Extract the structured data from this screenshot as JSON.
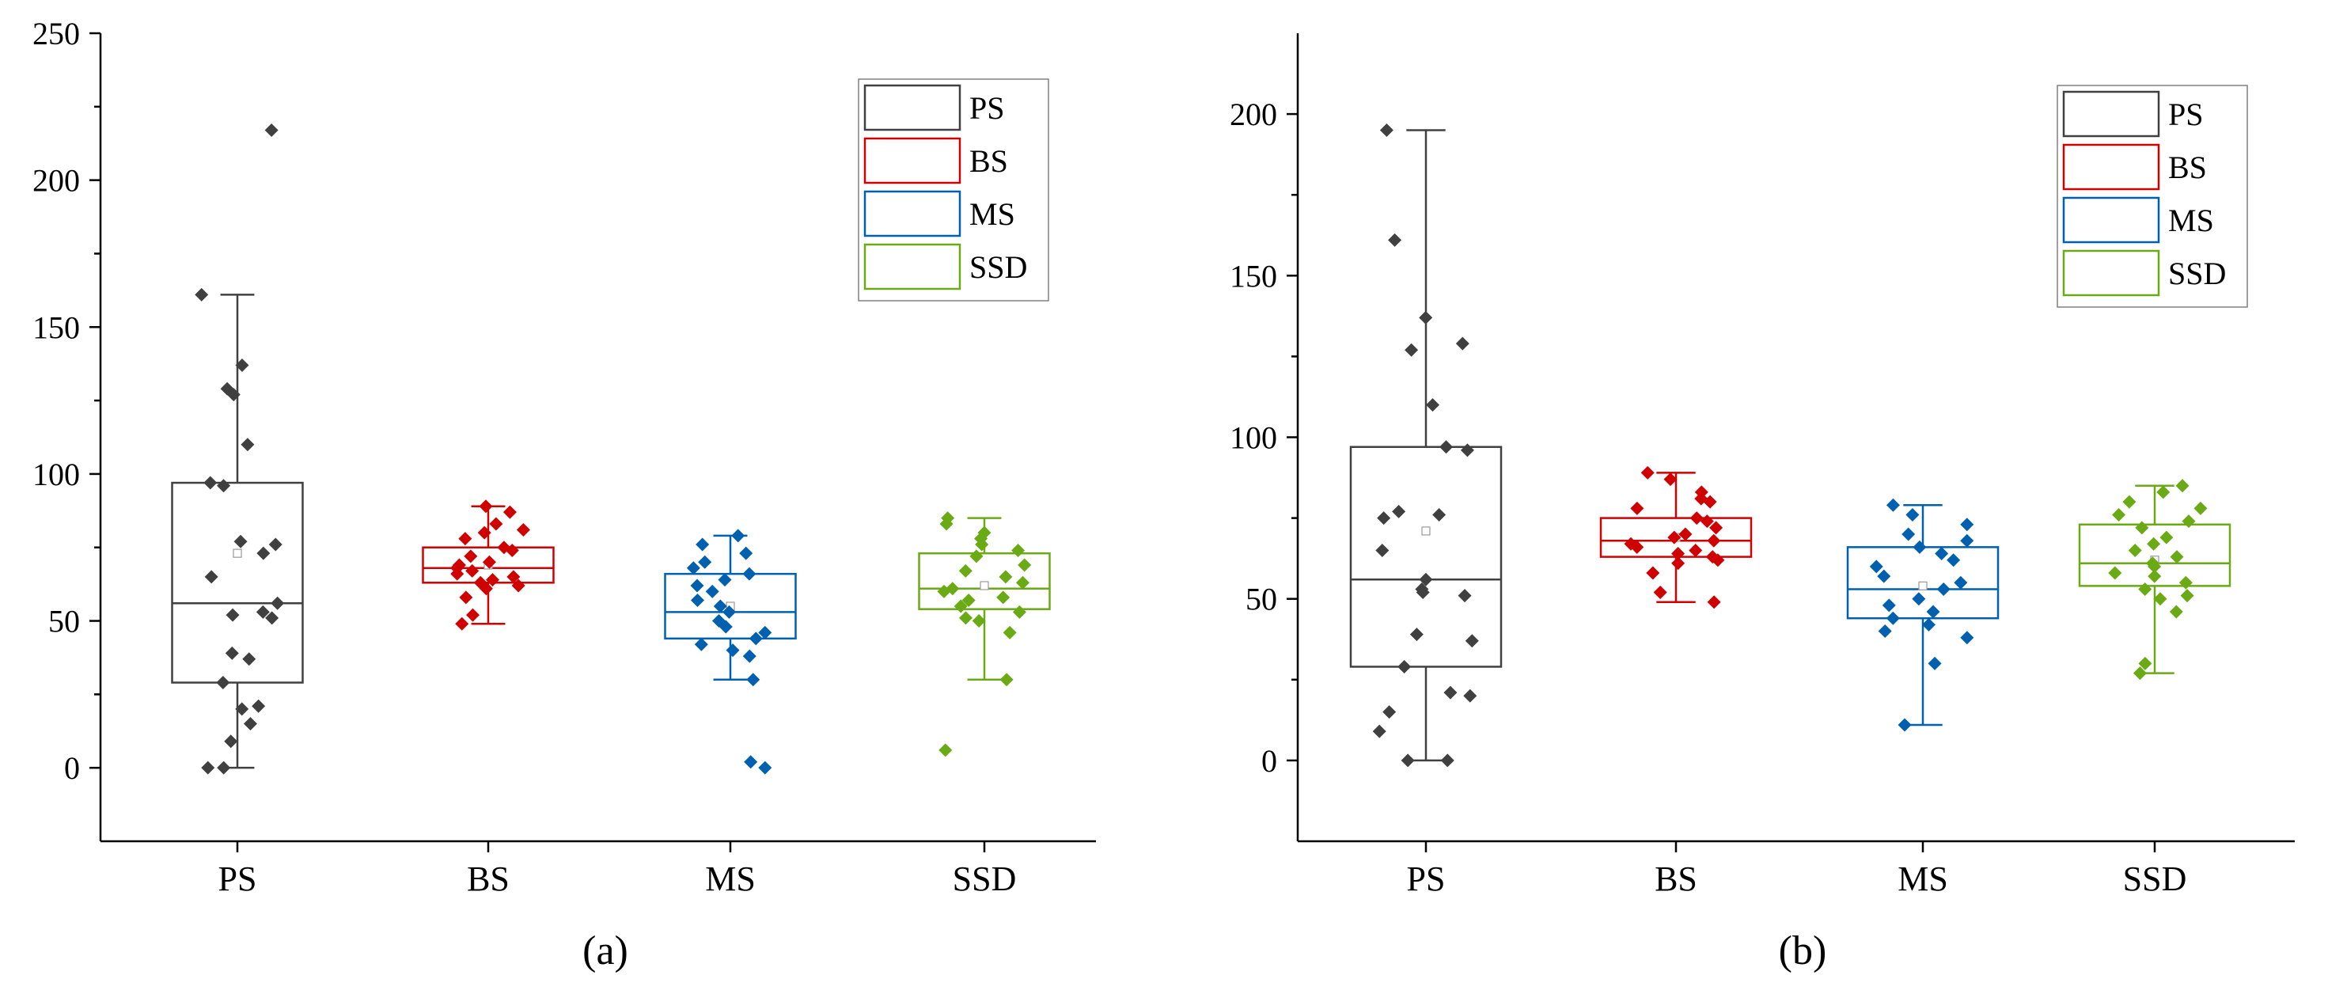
{
  "chart_data": [
    {
      "type": "box",
      "panel_label": "(a)",
      "categories": [
        "PS",
        "BS",
        "MS",
        "SSD"
      ],
      "ylim": [
        -25,
        250
      ],
      "yticks": [
        0,
        50,
        100,
        150,
        200,
        250
      ],
      "legend_position": "top-right",
      "legend": [
        "PS",
        "BS",
        "MS",
        "SSD"
      ],
      "colors": [
        "#404040",
        "#d00000",
        "#0060b0",
        "#6aaa14"
      ],
      "boxes": [
        {
          "name": "PS",
          "whisker_low": 0,
          "q1": 29,
          "median": 56,
          "q3": 97,
          "whisker_high": 161,
          "mean": 73,
          "points": [
            217,
            161,
            137,
            129,
            127,
            110,
            97,
            96,
            77,
            76,
            73,
            65,
            56,
            53,
            52,
            51,
            39,
            37,
            29,
            21,
            20,
            15,
            9,
            0,
            0
          ]
        },
        {
          "name": "BS",
          "whisker_low": 49,
          "q1": 63,
          "median": 68,
          "q3": 75,
          "whisker_high": 89,
          "mean": 69,
          "points": [
            89,
            87,
            83,
            81,
            80,
            78,
            75,
            74,
            72,
            70,
            69,
            68,
            67,
            66,
            65,
            64,
            63,
            62,
            61,
            58,
            52,
            49
          ]
        },
        {
          "name": "MS",
          "whisker_low": 30,
          "q1": 44,
          "median": 53,
          "q3": 66,
          "whisker_high": 79,
          "mean": 55,
          "points": [
            79,
            76,
            73,
            70,
            68,
            66,
            64,
            62,
            60,
            57,
            55,
            53,
            50,
            48,
            46,
            44,
            42,
            40,
            38,
            30,
            2,
            0
          ]
        },
        {
          "name": "SSD",
          "whisker_low": 30,
          "q1": 54,
          "median": 61,
          "q3": 73,
          "whisker_high": 85,
          "mean": 62,
          "points": [
            85,
            83,
            80,
            78,
            76,
            74,
            72,
            69,
            67,
            65,
            63,
            61,
            60,
            58,
            57,
            55,
            53,
            51,
            50,
            46,
            30,
            6
          ]
        }
      ]
    },
    {
      "type": "box",
      "panel_label": "(b)",
      "categories": [
        "PS",
        "BS",
        "MS",
        "SSD"
      ],
      "ylim": [
        -25,
        225
      ],
      "yticks": [
        0,
        50,
        100,
        150,
        200
      ],
      "legend_position": "top-right",
      "legend": [
        "PS",
        "BS",
        "MS",
        "SSD"
      ],
      "colors": [
        "#404040",
        "#d00000",
        "#0060b0",
        "#6aaa14"
      ],
      "boxes": [
        {
          "name": "PS",
          "whisker_low": 0,
          "q1": 29,
          "median": 56,
          "q3": 97,
          "whisker_high": 195,
          "mean": 71,
          "points": [
            195,
            161,
            137,
            129,
            127,
            110,
            97,
            96,
            77,
            76,
            75,
            65,
            56,
            53,
            52,
            51,
            39,
            37,
            29,
            21,
            20,
            15,
            9,
            0,
            0
          ]
        },
        {
          "name": "BS",
          "whisker_low": 49,
          "q1": 63,
          "median": 68,
          "q3": 75,
          "whisker_high": 89,
          "mean": 69,
          "points": [
            89,
            87,
            83,
            81,
            80,
            78,
            75,
            74,
            72,
            70,
            69,
            68,
            67,
            66,
            65,
            64,
            63,
            62,
            61,
            58,
            52,
            49
          ]
        },
        {
          "name": "MS",
          "whisker_low": 11,
          "q1": 44,
          "median": 53,
          "q3": 66,
          "whisker_high": 79,
          "mean": 54,
          "points": [
            79,
            76,
            73,
            70,
            68,
            66,
            64,
            62,
            60,
            57,
            55,
            53,
            50,
            48,
            46,
            44,
            42,
            40,
            38,
            30,
            11
          ]
        },
        {
          "name": "SSD",
          "whisker_low": 27,
          "q1": 54,
          "median": 61,
          "q3": 73,
          "whisker_high": 85,
          "mean": 62,
          "points": [
            85,
            83,
            80,
            78,
            76,
            74,
            72,
            69,
            67,
            65,
            63,
            61,
            60,
            58,
            57,
            55,
            53,
            51,
            50,
            46,
            30,
            27
          ]
        }
      ]
    }
  ]
}
